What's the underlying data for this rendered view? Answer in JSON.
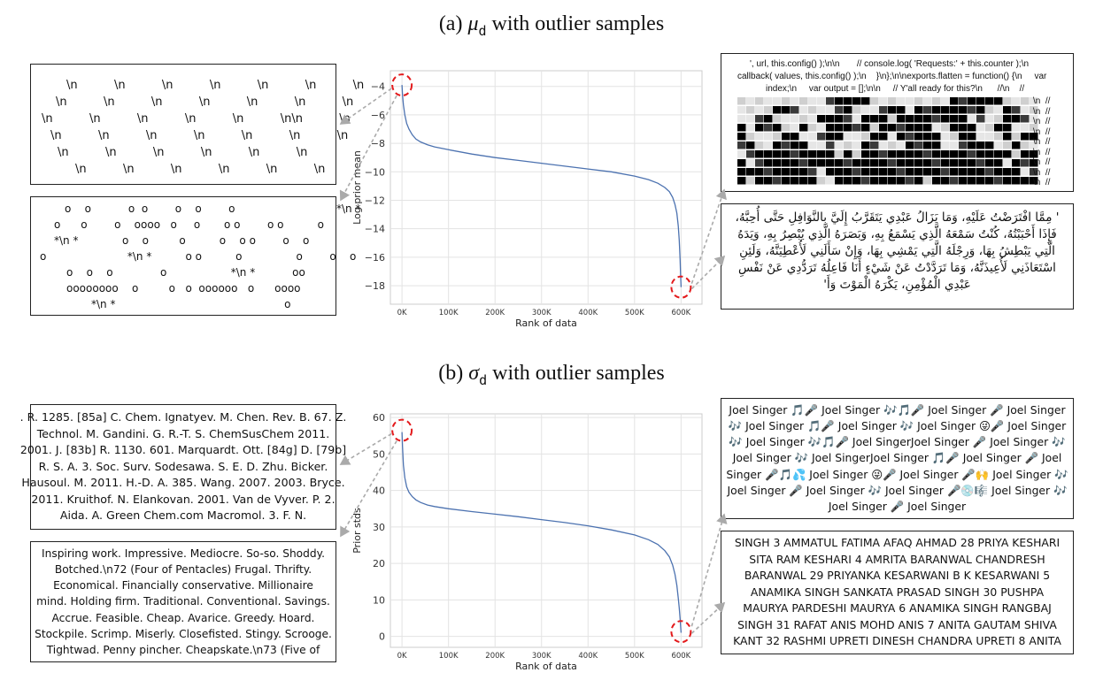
{
  "panel_a": {
    "title_prefix": "(a) ",
    "title_symbol": "μ",
    "title_sub": "d",
    "title_suffix": " with outlier samples",
    "box_newlines": {
      "rows": [
        "\\n          \\n          \\n          \\n          \\n          \\n          \\n",
        "\\n          \\n          \\n          \\n          \\n          \\n          \\n",
        "\\n          \\n          \\n          \\n          \\n          \\n\\n          \\n",
        "\\n          \\n          \\n          \\n          \\n          \\n          \\n",
        "\\n          \\n          \\n          \\n          \\n          \\n",
        "\\n          \\n          \\n          \\n          \\n          \\n"
      ]
    },
    "box_stars": {
      "rows": [
        "o    o           o  o        o    o        o                              *\\n *",
        "o      o        o    oooo   o     o       o o        o o          o",
        "*\\n *             o    o         o          o    o o        o    o",
        "o                        *\\n *          o o          o                o        o    o",
        "o    o    o              o                   *\\n *           oo",
        "oooooooo    o         o   o  oooooo   o      oooo",
        "*\\n *                                                  o"
      ]
    },
    "box_code": {
      "lines": [
        "', url, this.config() );\\n\\n       // console.log( 'Requests:' + this.counter );\\n",
        "callback( values, this.config() );\\n    }\\n};\\n\\nexports.flatten = function() {\\n     var",
        "index;\\n     var output = [];\\n\\n     // Y'all ready for this?\\n      //\\n    //"
      ],
      "side_marks": [
        "\\n  //",
        "\\n  //",
        "\\n  //",
        "\\n  //",
        "\\n  //",
        "\\n  //",
        "\\n  //",
        "\\n  //",
        "\\n  //"
      ]
    },
    "box_arabic": {
      "text": "' مِمَّا افْتَرَضْتُ عَلَيْهِ، وَمَا يَزَالُ عَبْدِي يَتَقَرَّبُ إِلَيَّ بِالنَّوَافِلِ حَتَّى أُحِبَّهُ، فَإِذَا أَحْبَبْتُهُ، كُنْتُ سَمْعَهُ الَّذِي يَسْمَعُ بِهِ، وَبَصَرَهُ الَّذِي يُبْصِرُ بِهِ، وَيَدَهُ الَّتِي يَبْطِشُ بِهَا، وَرِجْلَهُ الَّتِي يَمْشِي بِهَا، وَإِنْ سَأَلَنِي لَأُعْطِيَنَّهُ، وَلَئِنِ اسْتَعَاذَنِي لَأُعِيذَنَّهُ، وَمَا تَرَدَّدْتُ عَنْ شَيْءٍ أَنَا فَاعِلُهُ تَرَدُّدِي عَنْ نَفْسِ عَبْدِي الْمُؤْمِنِ، يَكْرَهُ الْمَوْتَ وَأَ'"
    }
  },
  "panel_b": {
    "title_prefix": "(b) ",
    "title_symbol": "σ",
    "title_sub": "d",
    "title_suffix": " with outlier samples",
    "box_refs": {
      "lines": [
        ". R. 1285.  [85a] C. Chem. Ignatyev. M. Chen. Rev. B. 67. Z.",
        "Technol. M. Gandini. G. R.-T. S. ChemSusChem 2011.",
        "2001. J. [83b] R. 1130. 601. Marquardt. Ott. [84g] D. [79b]",
        "R. S. A. 3. Soc. Surv. Sodesawa. S. E.  D. Zhu. Bicker.",
        "Hausoul. M. 2011. H.-D. A. 385. Wang. 2007. 2003. Bryce.",
        "2011. Kruithof. N. Elankovan. 2001. Van de Vyver. P. 2.",
        "Aida.  A. Green Chem.com Macromol. 3. F. N."
      ]
    },
    "box_words": {
      "lines": [
        "Inspiring work. Impressive. Mediocre. So-so. Shoddy.",
        "Botched.\\n72 (Four of Pentacles) Frugal. Thrifty.",
        "Economical. Financially conservative. Millionaire",
        "mind. Holding firm. Traditional. Conventional. Savings.",
        "Accrue. Feasible. Cheap. Avarice. Greedy. Hoard.",
        "Stockpile. Scrimp. Miserly. Closefisted. Stingy. Scrooge.",
        "Tightwad. Penny pincher. Cheapskate.\\n73 (Five of"
      ]
    },
    "box_singer": {
      "lines": [
        "Joel Singer 🎵🎤 Joel Singer 🎶🎵🎤 Joel Singer 🎤 Joel Singer",
        "🎶 Joel Singer 🎵🎤 Joel Singer 🎶 Joel Singer 😜🎤 Joel Singer",
        "🎶 Joel Singer 🎶🎵🎤 Joel SingerJoel Singer 🎤 Joel Singer 🎶",
        "Joel Singer 🎶 Joel SingerJoel Singer 🎵🎤 Joel Singer 🎤 Joel",
        "Singer 🎤🎵💦 Joel Singer 😜🎤 Joel Singer 🎤🙌 Joel Singer 🎶",
        "Joel Singer 🎤 Joel Singer 🎶 Joel Singer 🎤💿🎼 Joel Singer 🎶",
        "Joel Singer 🎤 Joel Singer"
      ]
    },
    "box_names": {
      "lines": [
        "SINGH 3 AMMATUL FATIMA AFAQ AHMAD 28 PRIYA KESHARI",
        "SITA RAM KESHARI 4 AMRITA BARANWAL CHANDRESH",
        "BARANWAL 29 PRIYANKA KESARWANI B K KESARWANI 5",
        "ANAMIKA SINGH SANKATA PRASAD SINGH 30 PUSHPA",
        "MAURYA PARDESHI MAURYA 6 ANAMIKA SINGH RANGBAJ",
        "SINGH 31 RAFAT ANIS MOHD ANIS 7 ANITA GAUTAM SHIVA",
        "KANT 32 RASHMI UPRETI DINESH CHANDRA UPRETI 8 ANITA"
      ]
    }
  },
  "chart_data": [
    {
      "type": "line",
      "title": "",
      "xlabel": "Rank of data",
      "ylabel": "Log prior mean",
      "xlim": [
        -25000,
        645000
      ],
      "ylim": [
        -19.3,
        -2.9
      ],
      "xticks": [
        0,
        100000,
        200000,
        300000,
        400000,
        500000,
        600000
      ],
      "xtick_labels": [
        "0K",
        "100K",
        "200K",
        "300K",
        "400K",
        "500K",
        "600K"
      ],
      "yticks": [
        -18,
        -16,
        -14,
        -12,
        -10,
        -8,
        -6,
        -4
      ],
      "ytick_labels": [
        "−18",
        "−16",
        "−14",
        "−12",
        "−10",
        "−8",
        "−6",
        "−4"
      ],
      "grid": true,
      "series": [
        {
          "name": "log prior mean",
          "color": "#4c72b0",
          "x": [
            0,
            1000,
            3000,
            6000,
            10000,
            15000,
            22000,
            30000,
            40000,
            55000,
            70000,
            100000,
            150000,
            200000,
            250000,
            300000,
            350000,
            400000,
            450000,
            500000,
            530000,
            550000,
            565000,
            575000,
            582000,
            587000,
            591000,
            594000,
            596000,
            598000,
            599000,
            600000
          ],
          "y": [
            -3.9,
            -4.6,
            -5.3,
            -6.0,
            -6.6,
            -7.0,
            -7.4,
            -7.7,
            -7.9,
            -8.1,
            -8.25,
            -8.45,
            -8.75,
            -9.0,
            -9.2,
            -9.4,
            -9.6,
            -9.8,
            -10.0,
            -10.3,
            -10.55,
            -10.8,
            -11.1,
            -11.4,
            -11.8,
            -12.3,
            -12.9,
            -13.8,
            -14.8,
            -16.2,
            -17.2,
            -18.1
          ]
        }
      ],
      "outlier_markers": [
        {
          "x": 0,
          "y": -3.9
        },
        {
          "x": 600000,
          "y": -18.1
        }
      ]
    },
    {
      "type": "line",
      "title": "",
      "xlabel": "Rank of data",
      "ylabel": "Prior stds",
      "xlim": [
        -25000,
        645000
      ],
      "ylim": [
        -3,
        61
      ],
      "xticks": [
        0,
        100000,
        200000,
        300000,
        400000,
        500000,
        600000
      ],
      "xtick_labels": [
        "0K",
        "100K",
        "200K",
        "300K",
        "400K",
        "500K",
        "600K"
      ],
      "yticks": [
        0,
        10,
        20,
        30,
        40,
        50,
        60
      ],
      "ytick_labels": [
        "0",
        "10",
        "20",
        "30",
        "40",
        "50",
        "60"
      ],
      "grid": true,
      "series": [
        {
          "name": "prior stds",
          "color": "#4c72b0",
          "x": [
            0,
            1000,
            3000,
            6000,
            10000,
            15000,
            22000,
            30000,
            40000,
            55000,
            70000,
            100000,
            150000,
            200000,
            250000,
            300000,
            350000,
            400000,
            450000,
            500000,
            530000,
            550000,
            565000,
            575000,
            582000,
            587000,
            591000,
            594000,
            596000,
            598000,
            599000,
            600000
          ],
          "y": [
            56,
            52,
            47,
            43.5,
            41,
            39.5,
            38.3,
            37.4,
            36.7,
            36.0,
            35.6,
            35.0,
            34.2,
            33.5,
            32.8,
            32.0,
            31.2,
            30.3,
            29.2,
            27.8,
            26.5,
            25.2,
            23.5,
            21.8,
            19.5,
            17.0,
            14.0,
            10.5,
            7.8,
            4.8,
            3.0,
            1.0
          ]
        }
      ],
      "outlier_markers": [
        {
          "x": 0,
          "y": 56.5
        },
        {
          "x": 600000,
          "y": 1.3
        }
      ]
    }
  ]
}
